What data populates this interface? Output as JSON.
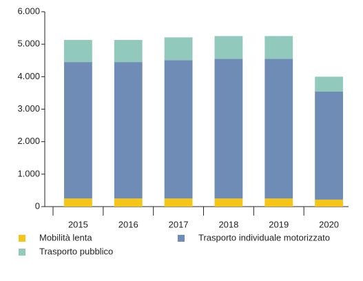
{
  "chart_data": {
    "type": "stacked-bar",
    "categories": [
      "2015",
      "2016",
      "2017",
      "2018",
      "2019",
      "2020"
    ],
    "series": [
      {
        "name": "Mobilità lenta",
        "color": "#f5c518",
        "values": [
          250,
          250,
          250,
          250,
          250,
          215
        ]
      },
      {
        "name": "Trasporto individuale motorizzato",
        "color": "#6e8cb5",
        "values": [
          4200,
          4200,
          4260,
          4300,
          4300,
          3325
        ]
      },
      {
        "name": "Trasporto pubblico",
        "color": "#92c9bd",
        "values": [
          680,
          680,
          700,
          700,
          700,
          460
        ]
      }
    ],
    "ylim": [
      0,
      6000
    ],
    "yticks": [
      0,
      {
        "value": 1000,
        "label": "1.000"
      },
      {
        "value": 2000,
        "label": "2.000"
      },
      {
        "value": 3000,
        "label": "3.000"
      },
      {
        "value": 4000,
        "label": "4.000"
      },
      {
        "value": 5000,
        "label": "5.000"
      },
      {
        "value": 6000,
        "label": "6.000"
      }
    ],
    "grid": false
  }
}
